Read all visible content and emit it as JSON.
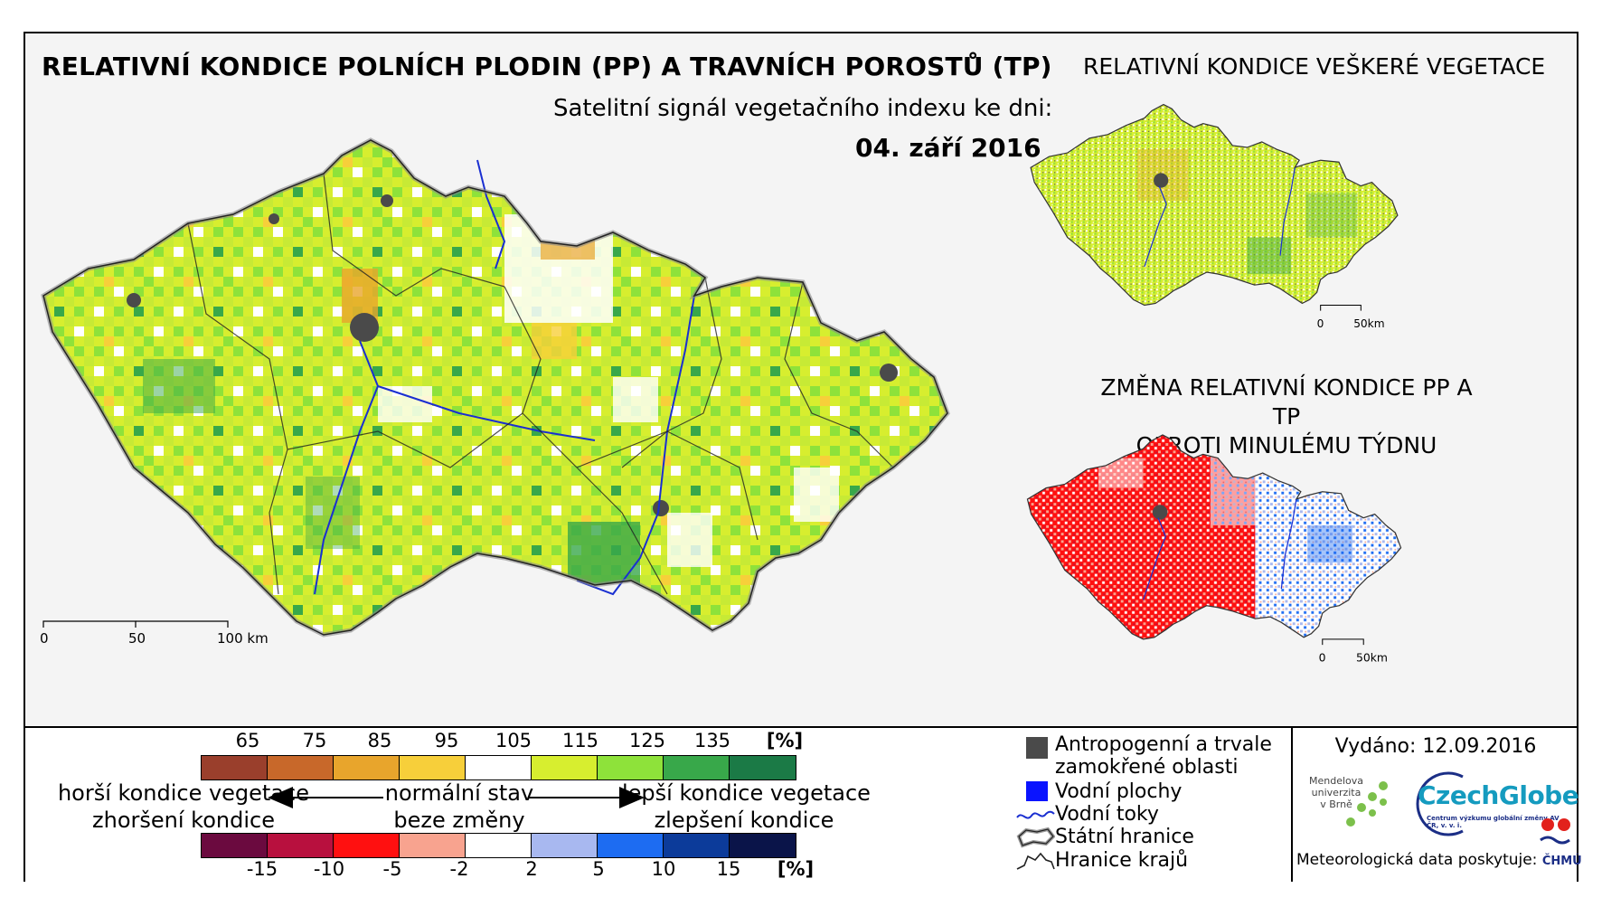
{
  "titles": {
    "main": "RELATIVNÍ KONDICE POLNÍCH PLODIN (PP) A TRAVNÍCH POROSTŮ (TP)",
    "subtitle": "Satelitní signál vegetačního indexu ke dni:",
    "date": "04. září 2016",
    "vegetation_map": "RELATIVNÍ KONDICE VEŠKERÉ VEGETACE",
    "change_map_line1": "ZMĚNA RELATIVNÍ KONDICE PP A TP",
    "change_map_line2": "OPROTI MINULÉMU TÝDNU"
  },
  "scale_bars": {
    "main": {
      "labels": [
        "0",
        "50",
        "100 km"
      ]
    },
    "small_1": {
      "labels": [
        "0",
        "50km"
      ]
    },
    "small_2": {
      "labels": [
        "0",
        "50km"
      ]
    }
  },
  "legend": {
    "condition_ticks": [
      "65",
      "75",
      "85",
      "95",
      "105",
      "115",
      "125",
      "135"
    ],
    "condition_unit": "[%]",
    "condition_colors": [
      "#9a3f2c",
      "#c8682a",
      "#e8a52c",
      "#f7cf3a",
      "#ffffff",
      "#d7ee2f",
      "#8ee23a",
      "#38a84a",
      "#1b7a46"
    ],
    "change_ticks": [
      "-15",
      "-10",
      "-5",
      "-2",
      "2",
      "5",
      "10",
      "15"
    ],
    "change_unit": "[%]",
    "change_colors": [
      "#6b0a3f",
      "#b8103e",
      "#ff1010",
      "#f8a38f",
      "#ffffff",
      "#a8b8f0",
      "#1d6cf2",
      "#0c3b9a",
      "#0a1449"
    ],
    "worse_condition": "horší kondice vegetace",
    "worse_change": "zhoršení kondice",
    "normal_state": "normální stav",
    "no_change": "beze změny",
    "better_condition": "lepší kondice vegetace",
    "better_change": "zlepšení kondice"
  },
  "symbols": {
    "anthropogenic_line1": "Antropogenní a trvale",
    "anthropogenic_line2": "zamokřené oblasti",
    "water_bodies": "Vodní plochy",
    "rivers": "Vodní toky",
    "state_border": "Státní hranice",
    "regional_border": "Hranice krajů"
  },
  "issued": "Vydáno: 12.09.2016",
  "logos": {
    "mendel_line1": "Mendelova",
    "mendel_line2": "univerzita",
    "mendel_line3": "v Brně",
    "czechglobe": "CzechGlobe",
    "czechglobe_sub": "Centrum výzkumu globální změny AV ČR, v. v. i.",
    "meteo_label": "Meteorologická data poskytuje:",
    "chmu": "ČHMÚ"
  }
}
